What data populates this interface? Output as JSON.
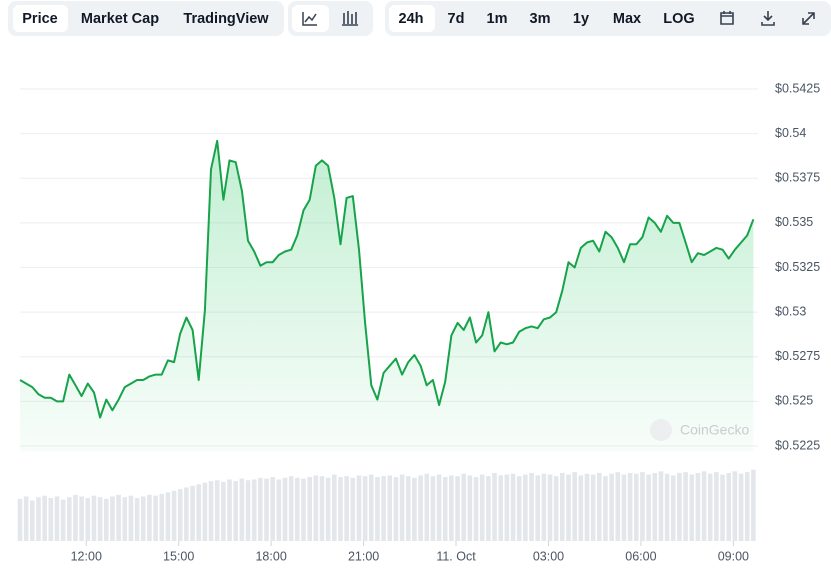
{
  "toolbar": {
    "tabs": [
      "Price",
      "Market Cap",
      "TradingView"
    ],
    "ranges": [
      "24h",
      "7d",
      "1m",
      "3m",
      "1y",
      "Max",
      "LOG"
    ]
  },
  "watermark": "CoinGecko",
  "chart_data": {
    "type": "line",
    "x": [
      9.85,
      10.05,
      10.25,
      10.45,
      10.65,
      10.85,
      11.05,
      11.25,
      11.45,
      11.65,
      11.85,
      12.05,
      12.25,
      12.45,
      12.65,
      12.85,
      13.05,
      13.25,
      13.45,
      13.65,
      13.85,
      14.05,
      14.25,
      14.45,
      14.65,
      14.85,
      15.05,
      15.25,
      15.45,
      15.65,
      15.85,
      16.05,
      16.25,
      16.45,
      16.65,
      16.85,
      17.05,
      17.25,
      17.45,
      17.65,
      17.85,
      18.05,
      18.25,
      18.45,
      18.65,
      18.85,
      19.05,
      19.25,
      19.45,
      19.65,
      19.85,
      20.05,
      20.25,
      20.45,
      20.65,
      20.85,
      21.05,
      21.25,
      21.45,
      21.65,
      21.85,
      22.05,
      22.25,
      22.45,
      22.65,
      22.85,
      23.05,
      23.25,
      23.45,
      23.65,
      23.85,
      24.05,
      24.25,
      24.45,
      24.65,
      24.85,
      25.05,
      25.25,
      25.45,
      25.65,
      25.85,
      26.05,
      26.25,
      26.45,
      26.65,
      26.85,
      27.05,
      27.25,
      27.45,
      27.65,
      27.85,
      28.05,
      28.25,
      28.45,
      28.65,
      28.85,
      29.05,
      29.25,
      29.45,
      29.65,
      29.85,
      30.05,
      30.25,
      30.45,
      30.65,
      30.85,
      31.05,
      31.25,
      31.45,
      31.65,
      31.85,
      32.05,
      32.25,
      32.45,
      32.65,
      32.85,
      33.05,
      33.25,
      33.45,
      33.65
    ],
    "xlim": [
      9.85,
      33.8
    ],
    "xticks": [
      {
        "value": 12,
        "label": "12:00"
      },
      {
        "value": 15,
        "label": "15:00"
      },
      {
        "value": 18,
        "label": "18:00"
      },
      {
        "value": 21,
        "label": "21:00"
      },
      {
        "value": 24,
        "label": "11. Oct"
      },
      {
        "value": 27,
        "label": "03:00"
      },
      {
        "value": 30,
        "label": "06:00"
      },
      {
        "value": 33,
        "label": "09:00"
      }
    ],
    "ylim": [
      0.5222,
      0.5425
    ],
    "yticks": [
      {
        "value": 0.5225,
        "label": "$0.5225"
      },
      {
        "value": 0.525,
        "label": "$0.525"
      },
      {
        "value": 0.5275,
        "label": "$0.5275"
      },
      {
        "value": 0.53,
        "label": "$0.53"
      },
      {
        "value": 0.5325,
        "label": "$0.5325"
      },
      {
        "value": 0.535,
        "label": "$0.535"
      },
      {
        "value": 0.5375,
        "label": "$0.5375"
      },
      {
        "value": 0.54,
        "label": "$0.54"
      },
      {
        "value": 0.5425,
        "label": "$0.5425"
      }
    ],
    "y2lim": [
      0,
      100
    ],
    "grid": true,
    "series": [
      {
        "color": "#16a34a",
        "values": [
          0.5262,
          0.526,
          0.5258,
          0.5254,
          0.5252,
          0.5252,
          0.525,
          0.525,
          0.5265,
          0.5259,
          0.5253,
          0.526,
          0.5255,
          0.5241,
          0.5251,
          0.5245,
          0.5251,
          0.5258,
          0.526,
          0.5262,
          0.5262,
          0.5264,
          0.5265,
          0.5265,
          0.5273,
          0.5272,
          0.5288,
          0.5297,
          0.529,
          0.5262,
          0.5301,
          0.538,
          0.5396,
          0.5363,
          0.5385,
          0.5384,
          0.5368,
          0.534,
          0.5334,
          0.5326,
          0.5328,
          0.5328,
          0.5332,
          0.5334,
          0.5335,
          0.5343,
          0.5357,
          0.5363,
          0.5382,
          0.5385,
          0.5382,
          0.5364,
          0.5338,
          0.5364,
          0.5365,
          0.5335,
          0.5294,
          0.5259,
          0.5251,
          0.5266,
          0.527,
          0.5274,
          0.5265,
          0.5272,
          0.5276,
          0.527,
          0.5259,
          0.5262,
          0.5248,
          0.5261,
          0.5287,
          0.5294,
          0.529,
          0.5297,
          0.5283,
          0.5287,
          0.53,
          0.5278,
          0.5283,
          0.5282,
          0.5283,
          0.5289,
          0.5291,
          0.5292,
          0.5291,
          0.5296,
          0.5297,
          0.53,
          0.5312,
          0.5328,
          0.5325,
          0.5336,
          0.5339,
          0.534,
          0.5334,
          0.5345,
          0.5342,
          0.5336,
          0.5328,
          0.5338,
          0.5338,
          0.5342,
          0.5353,
          0.535,
          0.5345,
          0.5354,
          0.535,
          0.535,
          0.5339,
          0.5328,
          0.5333,
          0.5332,
          0.5334,
          0.5336,
          0.5335,
          0.533,
          0.5335,
          0.5339,
          0.5343,
          0.5352
        ]
      },
      {
        "type": "bar",
        "axis": "y2",
        "color": "#e3e6ea",
        "values": [
          52,
          55,
          50,
          54,
          56,
          53,
          55,
          51,
          54,
          57,
          55,
          53,
          56,
          54,
          52,
          55,
          57,
          54,
          56,
          53,
          55,
          57,
          56,
          58,
          60,
          62,
          64,
          66,
          68,
          70,
          72,
          74,
          75,
          73,
          76,
          74,
          77,
          75,
          76,
          78,
          77,
          79,
          76,
          78,
          80,
          78,
          77,
          79,
          81,
          80,
          78,
          82,
          79,
          80,
          78,
          81,
          80,
          82,
          79,
          80,
          81,
          79,
          82,
          80,
          78,
          81,
          83,
          80,
          82,
          79,
          81,
          80,
          83,
          81,
          79,
          82,
          80,
          84,
          81,
          82,
          83,
          80,
          82,
          84,
          81,
          83,
          82,
          80,
          84,
          82,
          85,
          81,
          83,
          82,
          84,
          80,
          83,
          85,
          82,
          84,
          83,
          85,
          82,
          84,
          86,
          83,
          81,
          84,
          85,
          82,
          84,
          86,
          83,
          85,
          82,
          84,
          86,
          83,
          85,
          88
        ]
      }
    ]
  }
}
